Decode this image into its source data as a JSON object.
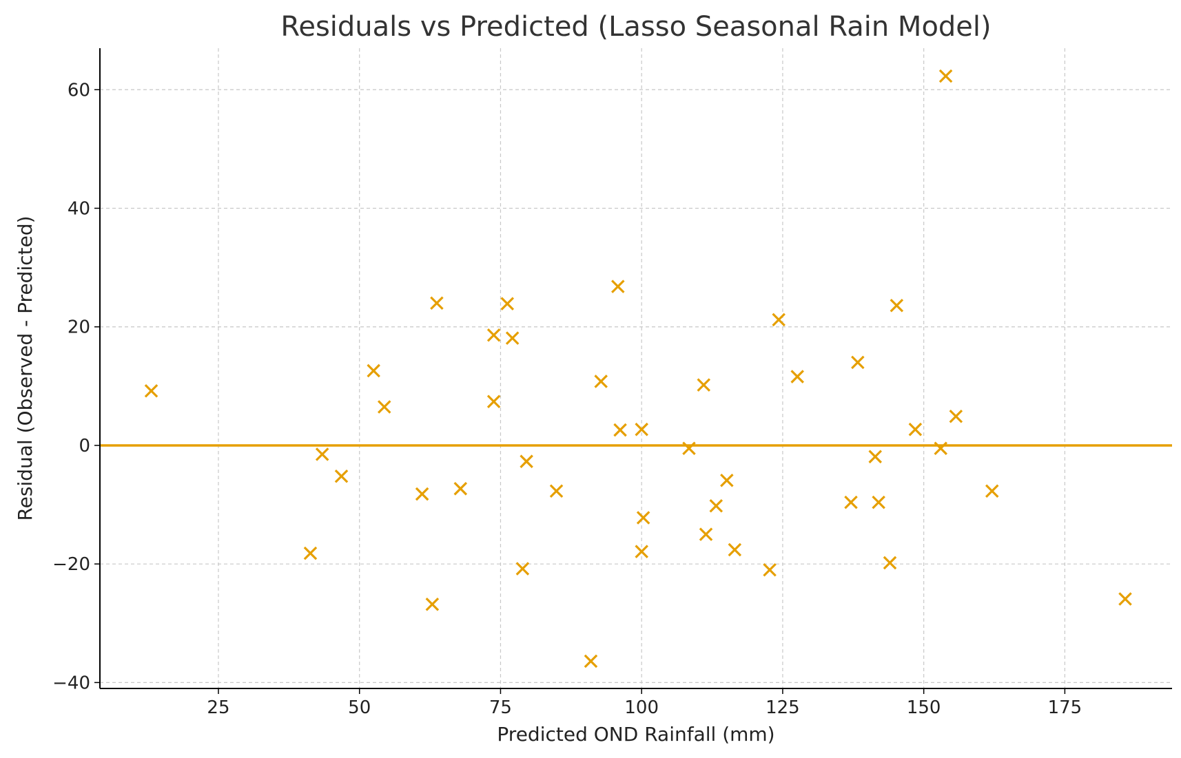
{
  "chart_data": {
    "type": "scatter",
    "title": "Residuals vs Predicted (Lasso Seasonal Rain Model)",
    "xlabel": "Predicted OND Rainfall (mm)",
    "ylabel": "Residual (Observed - Predicted)",
    "xlim": [
      4,
      194
    ],
    "ylim": [
      -41,
      67
    ],
    "xticks": [
      25,
      50,
      75,
      100,
      125,
      150,
      175
    ],
    "yticks": [
      -40,
      -20,
      0,
      20,
      40,
      60
    ],
    "xtick_labels": [
      "25",
      "50",
      "75",
      "100",
      "125",
      "150",
      "175"
    ],
    "ytick_labels": [
      "−40",
      "−20",
      "0",
      "20",
      "40",
      "60"
    ],
    "grid": true,
    "reference_line": {
      "y": 0,
      "color": "#E69F00"
    },
    "marker": "x",
    "marker_color": "#E69F00",
    "series": [
      {
        "name": "residuals",
        "points": [
          {
            "x": 13.1,
            "y": 9.2
          },
          {
            "x": 41.3,
            "y": -18.2
          },
          {
            "x": 43.4,
            "y": -1.5
          },
          {
            "x": 46.8,
            "y": -5.2
          },
          {
            "x": 52.5,
            "y": 12.6
          },
          {
            "x": 54.4,
            "y": 6.5
          },
          {
            "x": 61.1,
            "y": -8.2
          },
          {
            "x": 62.9,
            "y": -26.8
          },
          {
            "x": 63.7,
            "y": 24.0
          },
          {
            "x": 67.9,
            "y": -7.3
          },
          {
            "x": 73.8,
            "y": 18.6
          },
          {
            "x": 73.8,
            "y": 7.4
          },
          {
            "x": 76.2,
            "y": 23.9
          },
          {
            "x": 77.1,
            "y": 18.1
          },
          {
            "x": 78.9,
            "y": -20.8
          },
          {
            "x": 79.6,
            "y": -2.7
          },
          {
            "x": 84.9,
            "y": -7.7
          },
          {
            "x": 91.0,
            "y": -36.4
          },
          {
            "x": 92.8,
            "y": 10.8
          },
          {
            "x": 95.8,
            "y": 26.8
          },
          {
            "x": 96.2,
            "y": 2.6
          },
          {
            "x": 100.0,
            "y": 2.7
          },
          {
            "x": 100.0,
            "y": -17.9
          },
          {
            "x": 100.3,
            "y": -12.2
          },
          {
            "x": 108.4,
            "y": -0.5
          },
          {
            "x": 111.0,
            "y": 10.2
          },
          {
            "x": 111.4,
            "y": -15.0
          },
          {
            "x": 113.2,
            "y": -10.2
          },
          {
            "x": 115.1,
            "y": -5.9
          },
          {
            "x": 116.5,
            "y": -17.6
          },
          {
            "x": 122.7,
            "y": -21.0
          },
          {
            "x": 124.3,
            "y": 21.2
          },
          {
            "x": 127.6,
            "y": 11.6
          },
          {
            "x": 137.1,
            "y": -9.6
          },
          {
            "x": 138.3,
            "y": 14.0
          },
          {
            "x": 141.4,
            "y": -1.9
          },
          {
            "x": 142.0,
            "y": -9.6
          },
          {
            "x": 144.0,
            "y": -19.8
          },
          {
            "x": 145.2,
            "y": 23.6
          },
          {
            "x": 148.5,
            "y": 2.7
          },
          {
            "x": 153.0,
            "y": -0.5
          },
          {
            "x": 153.9,
            "y": 62.3
          },
          {
            "x": 155.7,
            "y": 4.9
          },
          {
            "x": 162.1,
            "y": -7.7
          },
          {
            "x": 185.7,
            "y": -25.9
          }
        ]
      }
    ]
  }
}
